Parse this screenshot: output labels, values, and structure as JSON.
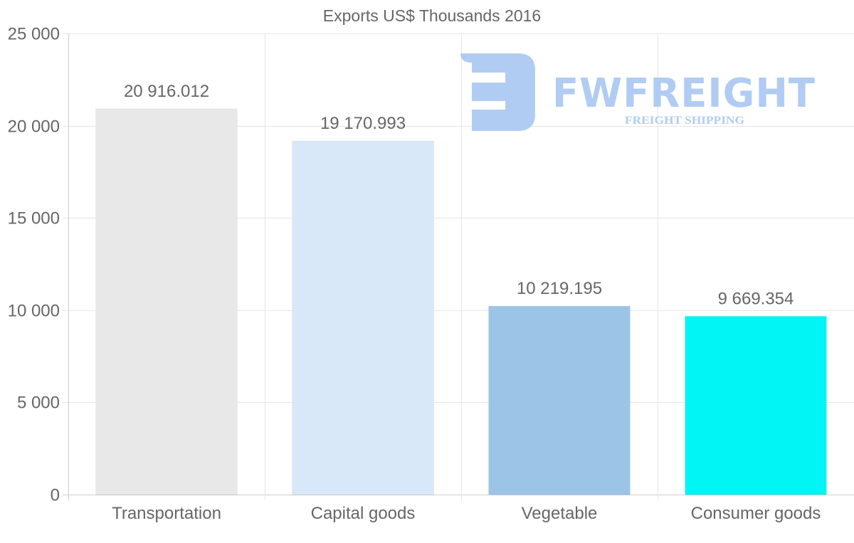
{
  "chart_data": {
    "type": "bar",
    "title": "Exports US$ Thousands 2016",
    "categories": [
      "Transportation",
      "Capital goods",
      "Vegetable",
      "Consumer goods"
    ],
    "values": [
      20916.012,
      19170.993,
      10219.195,
      9669.354
    ],
    "value_labels": [
      "20 916.012",
      "19 170.993",
      "10 219.195",
      "9 669.354"
    ],
    "colors": [
      "#e8e8e8",
      "#d8e8f9",
      "#9cc4e7",
      "#02f5f5"
    ],
    "xlabel": "",
    "ylabel": "",
    "ylim": [
      0,
      25000
    ],
    "yticks": [
      0,
      5000,
      10000,
      15000,
      20000,
      25000
    ],
    "ytick_labels": [
      "0",
      "5 000",
      "10 000",
      "15 000",
      "20 000",
      "25 000"
    ],
    "grid": true,
    "legend": "none"
  },
  "watermark": {
    "brand": "FWFREIGHT",
    "tagline": "FREIGHT SHIPPING"
  }
}
